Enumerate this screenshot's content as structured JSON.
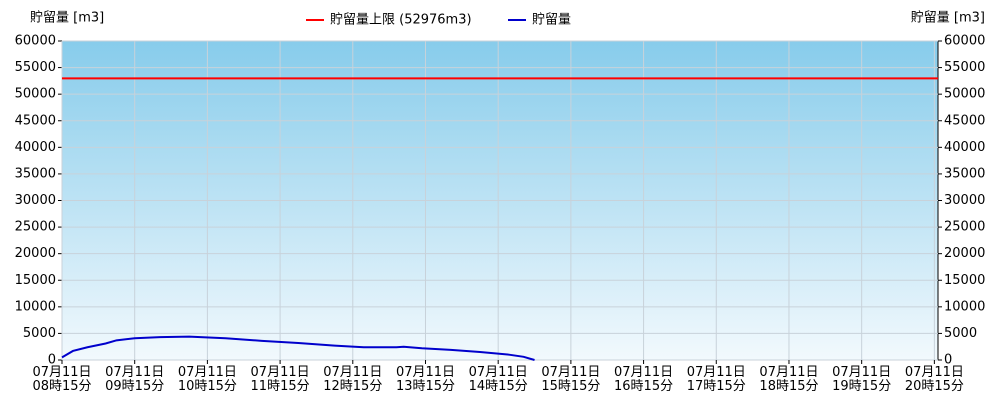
{
  "chart_data": {
    "type": "line",
    "y_label": "貯留量 [m3]",
    "y2_label": "貯留量 [m3]",
    "limit": {
      "name": "貯留量上限 (52976m3)",
      "value": 52976,
      "color": "#ff0000"
    },
    "x": [
      8.25,
      8.4,
      8.6,
      8.85,
      9.0,
      9.25,
      9.6,
      10.0,
      10.5,
      11.0,
      11.5,
      12.0,
      12.4,
      12.85,
      12.95,
      13.2,
      13.6,
      14.0,
      14.4,
      14.6,
      14.75
    ],
    "series": [
      {
        "name": "貯留量",
        "color": "#0000cc",
        "values": [
          500,
          1700,
          2400,
          3100,
          3700,
          4100,
          4300,
          4400,
          4100,
          3600,
          3200,
          2700,
          2400,
          2400,
          2500,
          2200,
          1900,
          1500,
          1000,
          600,
          0
        ]
      }
    ],
    "xlim": [
      8.25,
      20.3
    ],
    "xticks": [
      {
        "value": 8.25,
        "label": "07月11日\n08時15分"
      },
      {
        "value": 9.25,
        "label": "07月11日\n09時15分"
      },
      {
        "value": 10.25,
        "label": "07月11日\n10時15分"
      },
      {
        "value": 11.25,
        "label": "07月11日\n11時15分"
      },
      {
        "value": 12.25,
        "label": "07月11日\n12時15分"
      },
      {
        "value": 13.25,
        "label": "07月11日\n13時15分"
      },
      {
        "value": 14.25,
        "label": "07月11日\n14時15分"
      },
      {
        "value": 15.25,
        "label": "07月11日\n15時15分"
      },
      {
        "value": 16.25,
        "label": "07月11日\n16時15分"
      },
      {
        "value": 17.25,
        "label": "07月11日\n17時15分"
      },
      {
        "value": 18.25,
        "label": "07月11日\n18時15分"
      },
      {
        "value": 19.25,
        "label": "07月11日\n19時15分"
      },
      {
        "value": 20.25,
        "label": "07月11日\n20時15分"
      }
    ],
    "ylim": [
      0,
      60000
    ],
    "yticks": [
      0,
      5000,
      10000,
      15000,
      20000,
      25000,
      30000,
      35000,
      40000,
      45000,
      50000,
      55000,
      60000
    ],
    "grid": true,
    "background": [
      "#87cceb",
      "#f2f9fd"
    ]
  }
}
